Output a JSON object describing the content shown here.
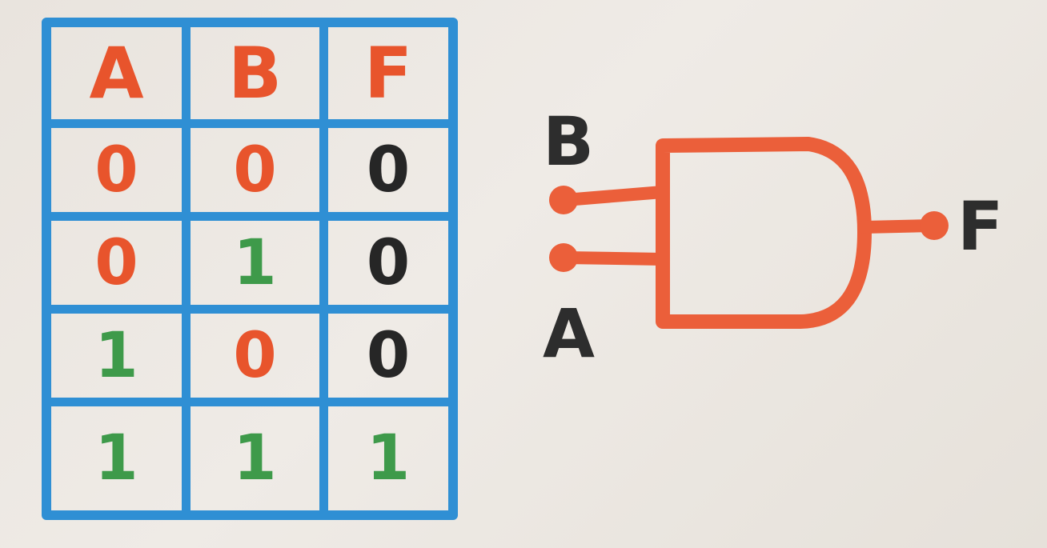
{
  "truth_table": {
    "headers": [
      "A",
      "B",
      "F"
    ],
    "rows": [
      [
        "0",
        "0",
        "0"
      ],
      [
        "0",
        "1",
        "0"
      ],
      [
        "1",
        "0",
        "0"
      ],
      [
        "1",
        "1",
        "1"
      ]
    ]
  },
  "gate": {
    "input_top_label": "B",
    "input_bottom_label": "A",
    "output_label": "F"
  },
  "colors": {
    "grid": "#2f8fd4",
    "red": "#e8542c",
    "green": "#3e9a4a",
    "black": "#262626",
    "gate": "#eb5f3a"
  }
}
